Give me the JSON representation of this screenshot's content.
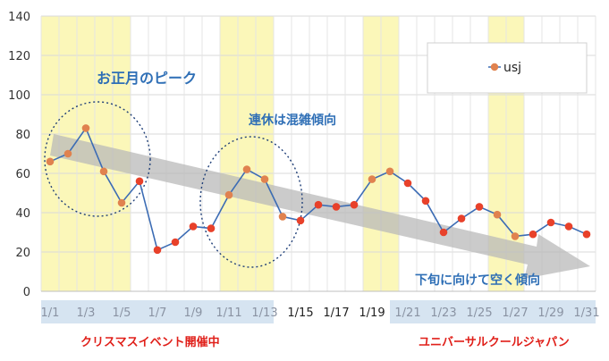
{
  "chart_data": {
    "type": "line",
    "x_ticks": [
      "1/1",
      "1/3",
      "1/5",
      "1/7",
      "1/9",
      "1/11",
      "1/13",
      "1/15",
      "1/17",
      "1/19",
      "1/21",
      "1/23",
      "1/25",
      "1/27",
      "1/29",
      "1/31"
    ],
    "y_ticks": [
      0,
      20,
      40,
      60,
      80,
      100,
      120,
      140
    ],
    "ylim": [
      0,
      140
    ],
    "x": [
      1,
      2,
      3,
      4,
      5,
      6,
      7,
      8,
      9,
      10,
      11,
      12,
      13,
      14,
      15,
      16,
      17,
      18,
      19,
      20,
      21,
      22,
      23,
      24,
      25,
      26,
      27,
      28,
      29,
      30,
      31
    ],
    "series": [
      {
        "name": "usj",
        "values": [
          66,
          70,
          83,
          61,
          45,
          56,
          21,
          25,
          33,
          32,
          49,
          62,
          57,
          38,
          36,
          44,
          43,
          44,
          57,
          61,
          55,
          46,
          30,
          37,
          43,
          39,
          28,
          29,
          35,
          33,
          29
        ]
      }
    ],
    "legend": {
      "position": "top-right",
      "label": "usj"
    },
    "grid": true,
    "annotations": {
      "new_year_peak": "お正月のピーク",
      "holiday_peak": "連休は混雑傾向",
      "trend_down": "下旬に向けて空く傾向"
    },
    "highlight_bands": [
      {
        "from": 1,
        "to": 5,
        "color": "#fbf7b9"
      },
      {
        "from": 11,
        "to": 13,
        "color": "#fbf7b9"
      },
      {
        "from": 19,
        "to": 20,
        "color": "#fbf7b9"
      },
      {
        "from": 26,
        "to": 27,
        "color": "#fbf7b9"
      }
    ],
    "tick_band_ranges": [
      {
        "from": 1,
        "to": 14,
        "color": "#d6e4f1"
      },
      {
        "from": 20.5,
        "to": 32,
        "color": "#d6e4f1"
      }
    ],
    "colors": {
      "line": "#3c6cb4",
      "marker_orange": "#e0824f",
      "marker_red": "#e8412a",
      "annotation_text": "#2f6fb6",
      "footer_text": "#e0201a",
      "arrow": "#b9b9b9"
    }
  },
  "footer": {
    "left": "クリスマスイベント開催中",
    "right": "ユニバーサルクールジャパン"
  }
}
